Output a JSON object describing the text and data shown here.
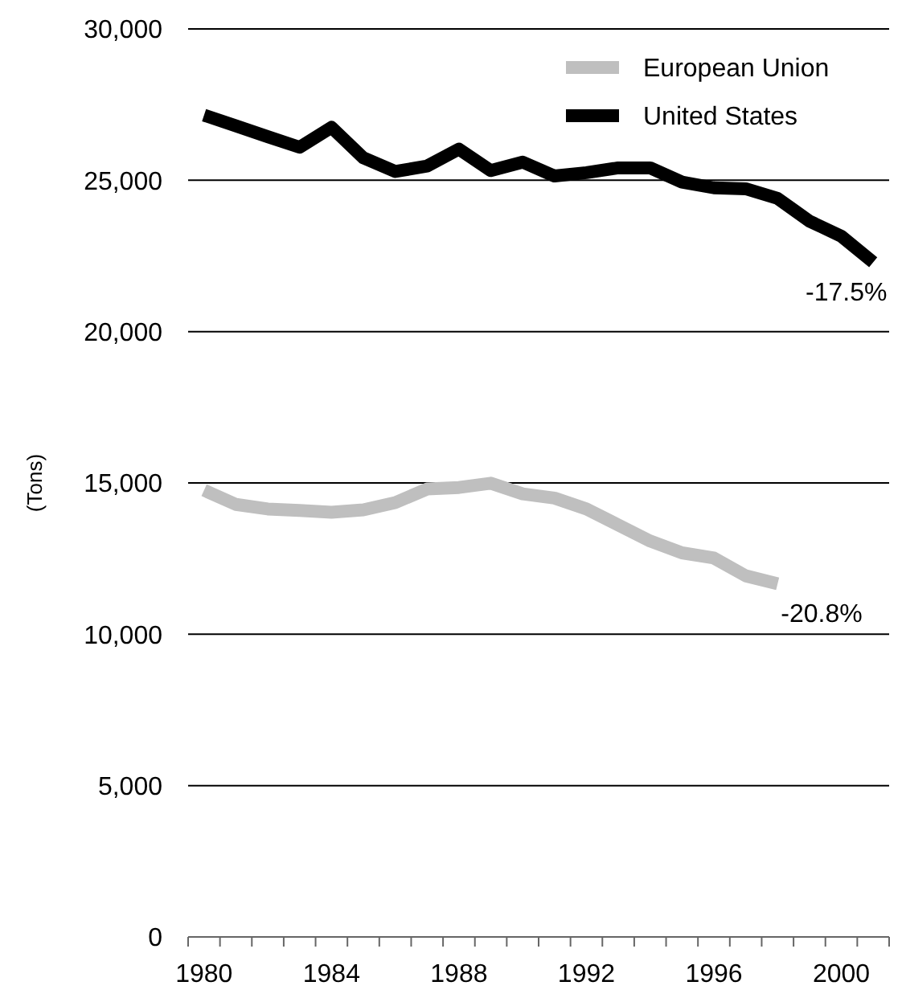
{
  "chart_data": {
    "type": "line",
    "ylabel": "(Tons)",
    "categories": [
      "1980",
      null,
      null,
      null,
      "1984",
      null,
      null,
      null,
      "1988",
      null,
      null,
      null,
      "1992",
      null,
      null,
      null,
      "1996",
      null,
      null,
      null,
      "2000",
      null
    ],
    "series": [
      {
        "name": "European Union",
        "color": "#bfbfbf",
        "values": [
          14760,
          14290,
          14140,
          14090,
          14030,
          14110,
          14350,
          14800,
          14850,
          14990,
          14640,
          14500,
          14140,
          13610,
          13080,
          12690,
          12520,
          11930,
          11670,
          null,
          null,
          null
        ]
      },
      {
        "name": "United States",
        "color": "#000000",
        "values": [
          27150,
          26800,
          26440,
          26090,
          26750,
          25740,
          25290,
          25470,
          26030,
          25320,
          25600,
          25140,
          25250,
          25410,
          25410,
          24940,
          24750,
          24720,
          24400,
          23650,
          23150,
          22290
        ]
      }
    ],
    "annotations": [
      "-20.8%",
      "-17.5%"
    ],
    "ylim": [
      0,
      30000
    ],
    "yticks": [
      {
        "value": 0,
        "label": "0"
      },
      {
        "value": 5000,
        "label": "5,000"
      },
      {
        "value": 10000,
        "label": "10,000"
      },
      {
        "value": 15000,
        "label": "15,000"
      },
      {
        "value": 20000,
        "label": "20,000"
      },
      {
        "value": 25000,
        "label": "25,000"
      },
      {
        "value": 30000,
        "label": "30,000"
      }
    ],
    "grid": "y",
    "legend": "top right",
    "marker": "none",
    "line_style": "solid"
  }
}
